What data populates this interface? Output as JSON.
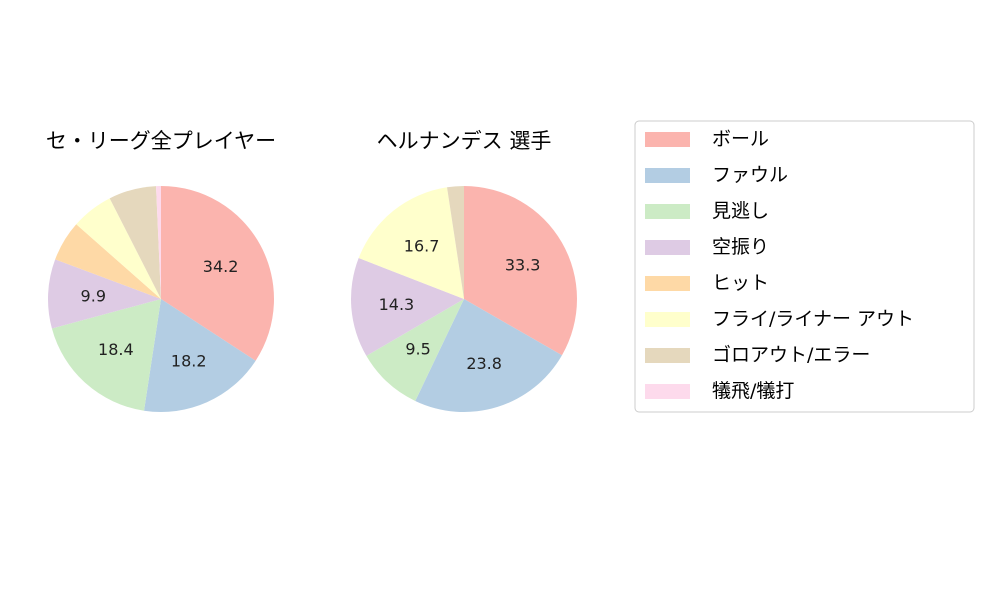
{
  "chart_data": [
    {
      "type": "pie",
      "title": "セ・リーグ全プレイヤー",
      "categories": [
        "ボール",
        "ファウル",
        "見逃し",
        "空振り",
        "ヒット",
        "フライ/ライナー アウト",
        "ゴロアウト/エラー",
        "犠飛/犠打"
      ],
      "values": [
        34.2,
        18.2,
        18.4,
        9.9,
        5.8,
        6.0,
        6.8,
        0.7
      ],
      "labels": [
        "34.2",
        "18.2",
        "18.4",
        "9.9",
        "",
        "",
        "",
        ""
      ],
      "start_angle": 90,
      "direction": "clockwise"
    },
    {
      "type": "pie",
      "title": "ヘルナンデス 選手",
      "categories": [
        "ボール",
        "ファウル",
        "見逃し",
        "空振り",
        "ヒット",
        "フライ/ライナー アウト",
        "ゴロアウト/エラー",
        "犠飛/犠打"
      ],
      "values": [
        33.3,
        23.8,
        9.5,
        14.3,
        0,
        16.7,
        2.4,
        0
      ],
      "labels": [
        "33.3",
        "23.8",
        "9.5",
        "14.3",
        "",
        "16.7",
        "",
        ""
      ],
      "start_angle": 90,
      "direction": "clockwise"
    }
  ],
  "legend": {
    "placement": "right",
    "entries": [
      {
        "label": "ボール",
        "color": "#fbb4ae"
      },
      {
        "label": "ファウル",
        "color": "#b3cde3"
      },
      {
        "label": "見逃し",
        "color": "#ccebc5"
      },
      {
        "label": "空振り",
        "color": "#decbe4"
      },
      {
        "label": "ヒット",
        "color": "#fed9a6"
      },
      {
        "label": "フライ/ライナー アウト",
        "color": "#ffffcc"
      },
      {
        "label": "ゴロアウト/エラー",
        "color": "#e5d8bd"
      },
      {
        "label": "犠飛/犠打",
        "color": "#fddaec"
      }
    ]
  }
}
